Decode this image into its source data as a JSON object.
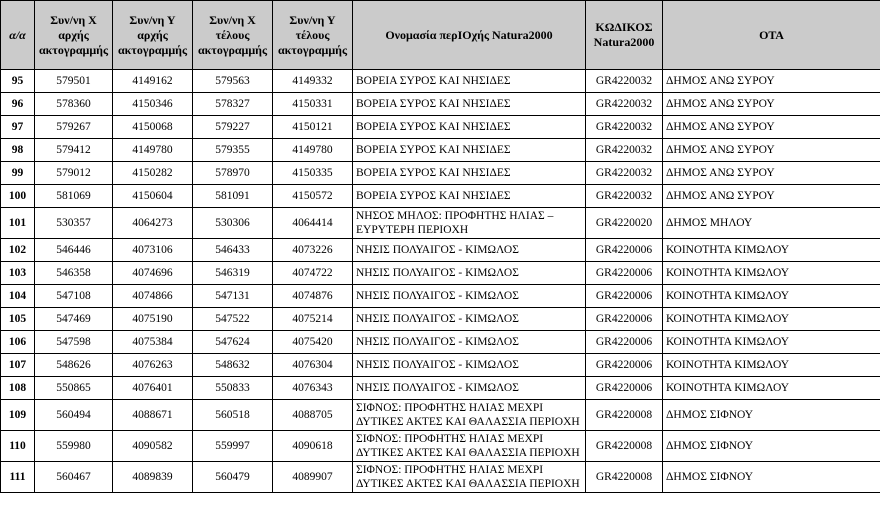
{
  "document": {
    "type": "scanned-table-page",
    "language": "el"
  },
  "colors": {
    "header_bg": "#cbcbcb",
    "border": "#000000",
    "body_bg": "#ffffff",
    "text": "#000000"
  },
  "table": {
    "columns": [
      {
        "key": "aa",
        "label": "α/α"
      },
      {
        "key": "x-start",
        "label": "Συν/νη Χ αρχής ακτογραμμής"
      },
      {
        "key": "y-start",
        "label": "Συν/νη Υ αρχής ακτογραμμής"
      },
      {
        "key": "x-end",
        "label": "Συν/νη Χ τέλους ακτογραμμής"
      },
      {
        "key": "y-end",
        "label": "Συν/νη Υ τέλους ακτογραμμής"
      },
      {
        "key": "name",
        "label": "Ονομασία περΙΟχής Natura2000"
      },
      {
        "key": "code",
        "label": "ΚΩΔΙΚΟΣ Natura2000"
      },
      {
        "key": "ota",
        "label": "ΟΤΑ"
      }
    ],
    "rows": [
      {
        "cells": [
          "95",
          "579501",
          "4149162",
          "579563",
          "4149332",
          "ΒΟΡΕΙΑ ΣΥΡΟΣ ΚΑΙ ΝΗΣΙΔΕΣ",
          "GR4220032",
          "ΔΗΜΟΣ ΑΝΩ ΣΥΡΟΥ"
        ]
      },
      {
        "cells": [
          "96",
          "578360",
          "4150346",
          "578327",
          "4150331",
          "ΒΟΡΕΙΑ ΣΥΡΟΣ ΚΑΙ ΝΗΣΙΔΕΣ",
          "GR4220032",
          "ΔΗΜΟΣ ΑΝΩ ΣΥΡΟΥ"
        ]
      },
      {
        "cells": [
          "97",
          "579267",
          "4150068",
          "579227",
          "4150121",
          "ΒΟΡΕΙΑ ΣΥΡΟΣ ΚΑΙ ΝΗΣΙΔΕΣ",
          "GR4220032",
          "ΔΗΜΟΣ ΑΝΩ ΣΥΡΟΥ"
        ]
      },
      {
        "cells": [
          "98",
          "579412",
          "4149780",
          "579355",
          "4149780",
          "ΒΟΡΕΙΑ ΣΥΡΟΣ ΚΑΙ ΝΗΣΙΔΕΣ",
          "GR4220032",
          "ΔΗΜΟΣ ΑΝΩ ΣΥΡΟΥ"
        ]
      },
      {
        "cells": [
          "99",
          "579012",
          "4150282",
          "578970",
          "4150335",
          "ΒΟΡΕΙΑ ΣΥΡΟΣ ΚΑΙ ΝΗΣΙΔΕΣ",
          "GR4220032",
          "ΔΗΜΟΣ ΑΝΩ ΣΥΡΟΥ"
        ]
      },
      {
        "cells": [
          "100",
          "581069",
          "4150604",
          "581091",
          "4150572",
          "ΒΟΡΕΙΑ ΣΥΡΟΣ ΚΑΙ ΝΗΣΙΔΕΣ",
          "GR4220032",
          "ΔΗΜΟΣ ΑΝΩ ΣΥΡΟΥ"
        ]
      },
      {
        "cells": [
          "101",
          "530357",
          "4064273",
          "530306",
          "4064414",
          "ΝΗΣΟΣ ΜΗΛΟΣ: ΠΡΟΦΗΤΗΣ ΗΛΙΑΣ – ΕΥΡΥΤΕΡΗ ΠΕΡΙΟΧΗ",
          "GR4220020",
          "ΔΗΜΟΣ ΜΗΛΟΥ"
        ]
      },
      {
        "cells": [
          "102",
          "546446",
          "4073106",
          "546433",
          "4073226",
          "ΝΗΣΙΣ ΠΟΛΥΑΙΓΟΣ - ΚΙΜΩΛΟΣ",
          "GR4220006",
          "ΚΟΙΝΟΤΗΤΑ ΚΙΜΩΛΟΥ"
        ]
      },
      {
        "cells": [
          "103",
          "546358",
          "4074696",
          "546319",
          "4074722",
          "ΝΗΣΙΣ ΠΟΛΥΑΙΓΟΣ - ΚΙΜΩΛΟΣ",
          "GR4220006",
          "ΚΟΙΝΟΤΗΤΑ ΚΙΜΩΛΟΥ"
        ]
      },
      {
        "cells": [
          "104",
          "547108",
          "4074866",
          "547131",
          "4074876",
          "ΝΗΣΙΣ ΠΟΛΥΑΙΓΟΣ - ΚΙΜΩΛΟΣ",
          "GR4220006",
          "ΚΟΙΝΟΤΗΤΑ ΚΙΜΩΛΟΥ"
        ]
      },
      {
        "cells": [
          "105",
          "547469",
          "4075190",
          "547522",
          "4075214",
          "ΝΗΣΙΣ ΠΟΛΥΑΙΓΟΣ - ΚΙΜΩΛΟΣ",
          "GR4220006",
          "ΚΟΙΝΟΤΗΤΑ ΚΙΜΩΛΟΥ"
        ]
      },
      {
        "cells": [
          "106",
          "547598",
          "4075384",
          "547624",
          "4075420",
          "ΝΗΣΙΣ ΠΟΛΥΑΙΓΟΣ - ΚΙΜΩΛΟΣ",
          "GR4220006",
          "ΚΟΙΝΟΤΗΤΑ ΚΙΜΩΛΟΥ"
        ]
      },
      {
        "cells": [
          "107",
          "548626",
          "4076263",
          "548632",
          "4076304",
          "ΝΗΣΙΣ ΠΟΛΥΑΙΓΟΣ - ΚΙΜΩΛΟΣ",
          "GR4220006",
          "ΚΟΙΝΟΤΗΤΑ ΚΙΜΩΛΟΥ"
        ]
      },
      {
        "cells": [
          "108",
          "550865",
          "4076401",
          "550833",
          "4076343",
          "ΝΗΣΙΣ ΠΟΛΥΑΙΓΟΣ - ΚΙΜΩΛΟΣ",
          "GR4220006",
          "ΚΟΙΝΟΤΗΤΑ ΚΙΜΩΛΟΥ"
        ]
      },
      {
        "cells": [
          "109",
          "560494",
          "4088671",
          "560518",
          "4088705",
          "ΣΙΦΝΟΣ: ΠΡΟΦΗΤΗΣ ΗΛΙΑΣ ΜΕΧΡΙ ΔΥΤΙΚΕΣ ΑΚΤΕΣ ΚΑΙ ΘΑΛΑΣΣΙΑ ΠΕΡΙΟΧΗ",
          "GR4220008",
          "ΔΗΜΟΣ ΣΙΦΝΟΥ"
        ]
      },
      {
        "cells": [
          "110",
          "559980",
          "4090582",
          "559997",
          "4090618",
          "ΣΙΦΝΟΣ: ΠΡΟΦΗΤΗΣ ΗΛΙΑΣ ΜΕΧΡΙ ΔΥΤΙΚΕΣ ΑΚΤΕΣ ΚΑΙ ΘΑΛΑΣΣΙΑ ΠΕΡΙΟΧΗ",
          "GR4220008",
          "ΔΗΜΟΣ ΣΙΦΝΟΥ"
        ]
      },
      {
        "cells": [
          "111",
          "560467",
          "4089839",
          "560479",
          "4089907",
          "ΣΙΦΝΟΣ: ΠΡΟΦΗΤΗΣ ΗΛΙΑΣ ΜΕΧΡΙ ΔΥΤΙΚΕΣ ΑΚΤΕΣ ΚΑΙ ΘΑΛΑΣΣΙΑ ΠΕΡΙΟΧΗ",
          "GR4220008",
          "ΔΗΜΟΣ ΣΙΦΝΟΥ"
        ]
      }
    ]
  }
}
